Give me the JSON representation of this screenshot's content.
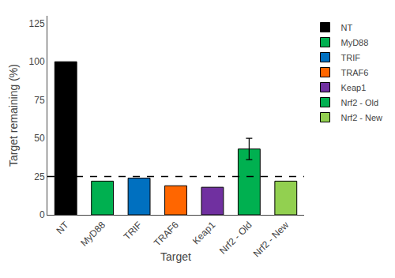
{
  "chart_data": {
    "type": "bar",
    "categories": [
      "NT",
      "MyD88",
      "TRIF",
      "TRAF6",
      "Keap1",
      "Nrf2 - Old",
      "Nrf2 - New"
    ],
    "values": [
      100,
      22,
      24,
      19,
      18,
      43,
      22
    ],
    "errors": [
      0,
      0,
      0,
      0,
      0,
      7,
      0
    ],
    "colors": [
      "#000000",
      "#00b050",
      "#0070c0",
      "#ff6600",
      "#7030a0",
      "#00b050",
      "#92d050"
    ],
    "hline": 25,
    "xlabel": "Target",
    "ylabel": "Target remaining (%)",
    "ylim": [
      0,
      130
    ],
    "yticks": [
      0,
      25,
      50,
      75,
      100,
      125
    ],
    "grid": false,
    "legend": "upper right"
  }
}
